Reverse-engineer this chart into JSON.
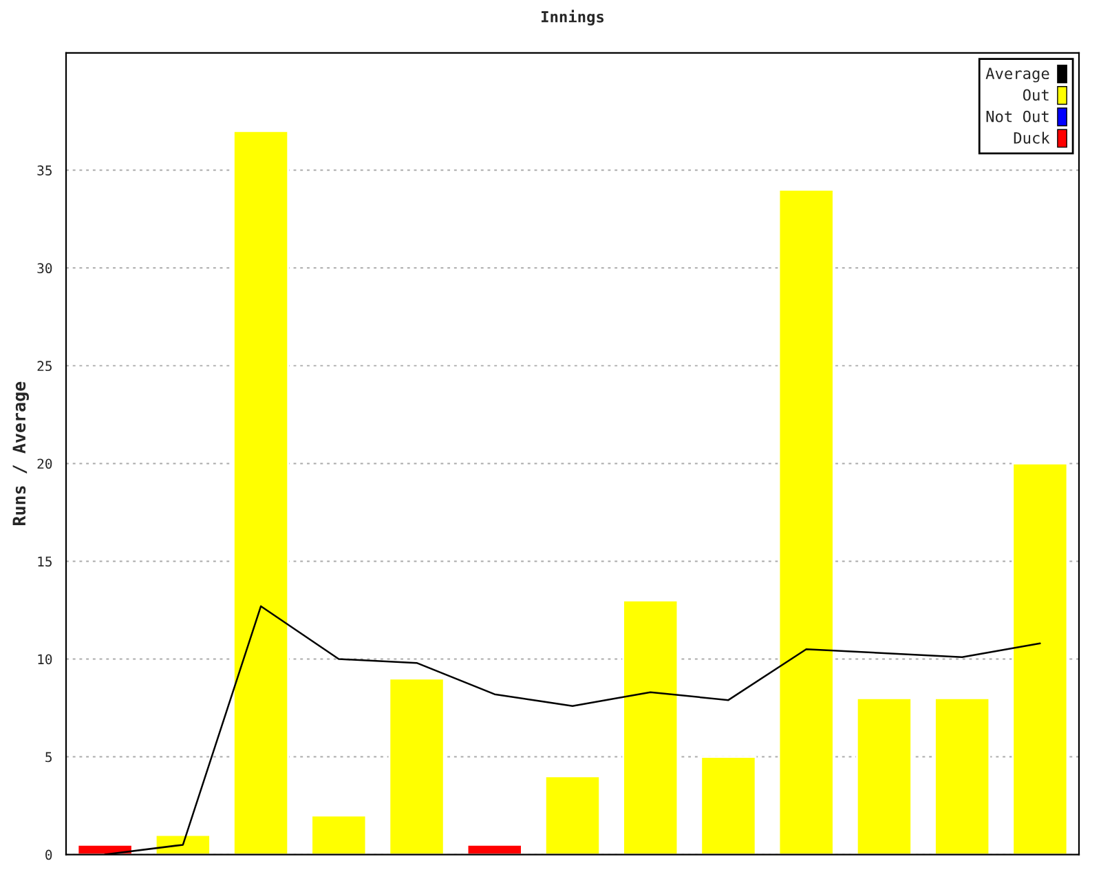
{
  "chart_data": {
    "type": "bar",
    "title": "Innings",
    "ylabel": "Runs / Average",
    "categories": [
      null,
      null,
      null,
      null,
      null,
      null,
      null,
      null,
      null,
      null,
      null,
      null,
      null
    ],
    "series": [
      {
        "name": "Average",
        "type": "line",
        "color": "#000000",
        "values": [
          0,
          0.5,
          12.7,
          10,
          9.8,
          8.2,
          7.6,
          8.3,
          7.9,
          10.5,
          10.3,
          10.1,
          10.8
        ]
      },
      {
        "name": "Out",
        "color": "#ffff00",
        "values": [
          null,
          1,
          37,
          2,
          9,
          null,
          4,
          13,
          5,
          34,
          8,
          8,
          20
        ]
      },
      {
        "name": "Not Out",
        "color": "#0000ff",
        "values": [
          null,
          null,
          null,
          null,
          null,
          null,
          null,
          null,
          null,
          null,
          null,
          null,
          null
        ]
      },
      {
        "name": "Duck",
        "color": "#ff0000",
        "values": [
          0.5,
          null,
          null,
          null,
          null,
          0.5,
          null,
          null,
          null,
          null,
          null,
          null,
          null
        ]
      }
    ],
    "ylim": [
      0,
      41
    ],
    "yticks": [
      0,
      5,
      10,
      15,
      20,
      25,
      30,
      35
    ],
    "grid": "y",
    "legend": "top right",
    "marker": "none",
    "line_style": "solid"
  }
}
